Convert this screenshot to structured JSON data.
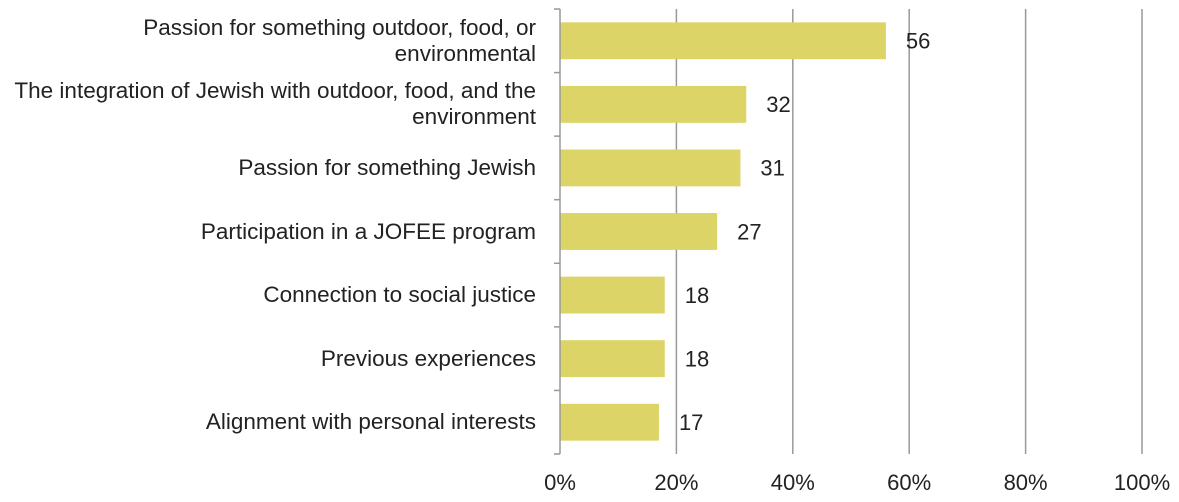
{
  "chart_data": {
    "type": "bar",
    "orientation": "horizontal",
    "categories": [
      "Passion for something outdoor, food, or environmental",
      "The integration of Jewish with outdoor, food, and the environment",
      "Passion for something Jewish",
      "Participation in a JOFEE program",
      "Connection to social justice",
      "Previous experiences",
      "Alignment with personal interests"
    ],
    "values": [
      56,
      32,
      31,
      27,
      18,
      18,
      17
    ],
    "color": "#dcd466",
    "xlim": [
      0,
      100
    ],
    "xticks": [
      {
        "value": 0,
        "label": "0%"
      },
      {
        "value": 20,
        "label": "20%"
      },
      {
        "value": 40,
        "label": "40%"
      },
      {
        "value": 60,
        "label": "60%"
      },
      {
        "value": 80,
        "label": "80%"
      },
      {
        "value": 100,
        "label": "100%"
      }
    ],
    "grid": true
  }
}
